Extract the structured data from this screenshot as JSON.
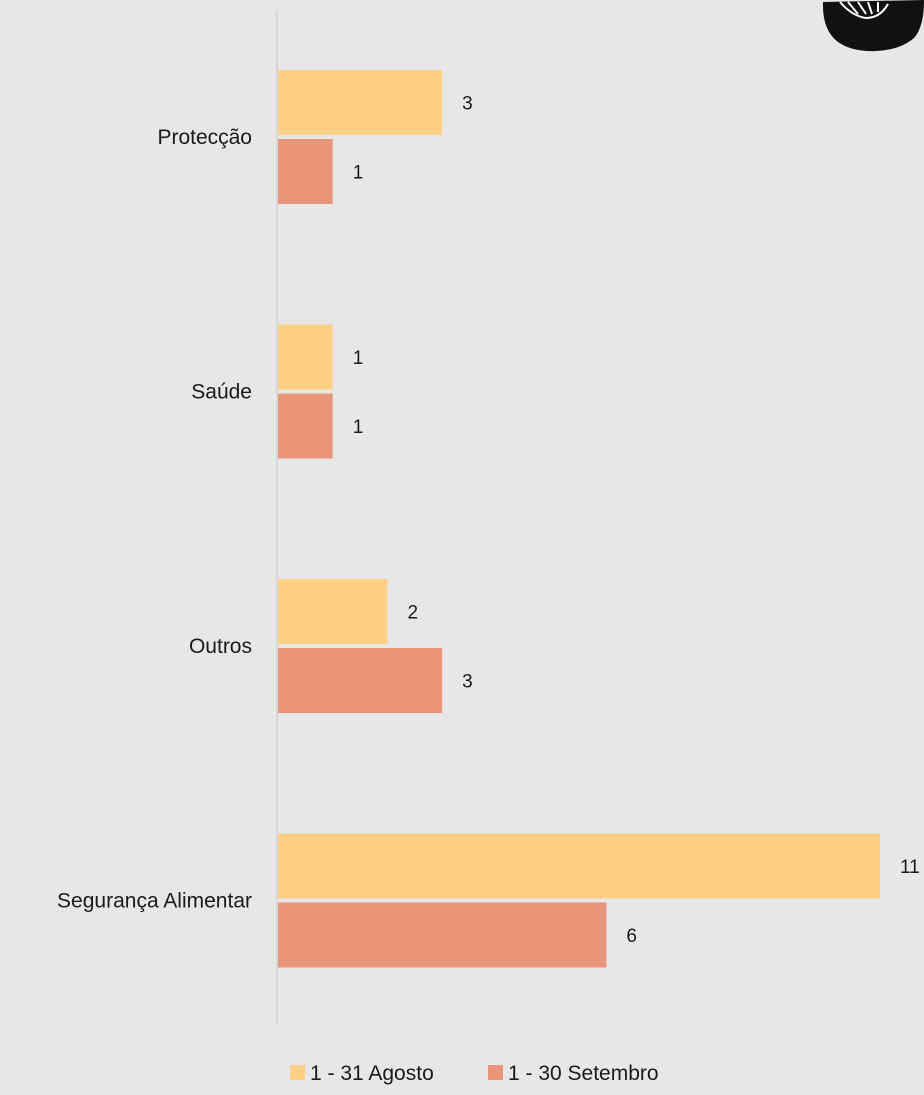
{
  "chart_data": {
    "type": "bar",
    "orientation": "horizontal",
    "categories": [
      "Protecção",
      "Saúde",
      "Outros",
      "Segurança Alimentar"
    ],
    "series": [
      {
        "name": "1 - 31 Agosto",
        "values": [
          3,
          1,
          2,
          11
        ],
        "color": "#fdd085"
      },
      {
        "name": "1 - 30 Setembro",
        "values": [
          1,
          1,
          3,
          6
        ],
        "color": "#e8957a"
      }
    ],
    "title": "",
    "xlabel": "",
    "ylabel": "",
    "xlim": [
      0,
      11
    ],
    "grid": false,
    "legend": "bottom",
    "data_labels": true
  },
  "icon": "food-bowl-icon",
  "colors": {
    "background": "#e7e7e7",
    "axis": "#d0d0d0",
    "text": "#1a1a1a"
  }
}
